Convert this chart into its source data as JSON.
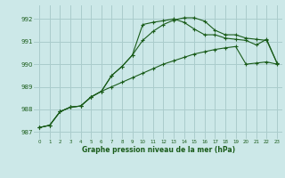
{
  "title": "Graphe pression niveau de la mer (hPa)",
  "bg_color": "#cce8e8",
  "grid_color": "#aacccc",
  "line_color": "#1a5c1a",
  "xlim": [
    -0.5,
    23.5
  ],
  "ylim": [
    986.7,
    992.6
  ],
  "yticks": [
    987,
    988,
    989,
    990,
    991,
    992
  ],
  "xticks": [
    0,
    1,
    2,
    3,
    4,
    5,
    6,
    7,
    8,
    9,
    10,
    11,
    12,
    13,
    14,
    15,
    16,
    17,
    18,
    19,
    20,
    21,
    22,
    23
  ],
  "series1_x": [
    0,
    1,
    2,
    3,
    4,
    5,
    6,
    7,
    8,
    9,
    10,
    11,
    12,
    13,
    14,
    15,
    16,
    17,
    18,
    19,
    20,
    21,
    22,
    23
  ],
  "series1_y": [
    987.2,
    987.3,
    987.9,
    988.1,
    988.15,
    988.55,
    988.8,
    989.5,
    989.9,
    990.4,
    991.05,
    991.45,
    991.75,
    991.95,
    992.05,
    992.05,
    991.9,
    991.5,
    991.3,
    991.3,
    991.15,
    991.1,
    991.05,
    990.05
  ],
  "series2_x": [
    0,
    1,
    2,
    3,
    4,
    5,
    6,
    7,
    8,
    9,
    10,
    11,
    12,
    13,
    14,
    15,
    16,
    17,
    18,
    19,
    20,
    21,
    22,
    23
  ],
  "series2_y": [
    987.2,
    987.3,
    987.9,
    988.1,
    988.15,
    988.55,
    988.8,
    989.5,
    989.9,
    990.4,
    991.75,
    991.85,
    991.92,
    992.0,
    991.85,
    991.55,
    991.3,
    991.3,
    991.15,
    991.1,
    991.05,
    990.85,
    991.1,
    990.05
  ],
  "series3_x": [
    0,
    1,
    2,
    3,
    4,
    5,
    6,
    7,
    8,
    9,
    10,
    11,
    12,
    13,
    14,
    15,
    16,
    17,
    18,
    19,
    20,
    21,
    22,
    23
  ],
  "series3_y": [
    987.2,
    987.3,
    987.9,
    988.1,
    988.15,
    988.55,
    988.8,
    989.0,
    989.2,
    989.4,
    989.6,
    989.8,
    990.0,
    990.15,
    990.3,
    990.45,
    990.55,
    990.65,
    990.72,
    990.78,
    990.0,
    990.05,
    990.1,
    990.0
  ]
}
